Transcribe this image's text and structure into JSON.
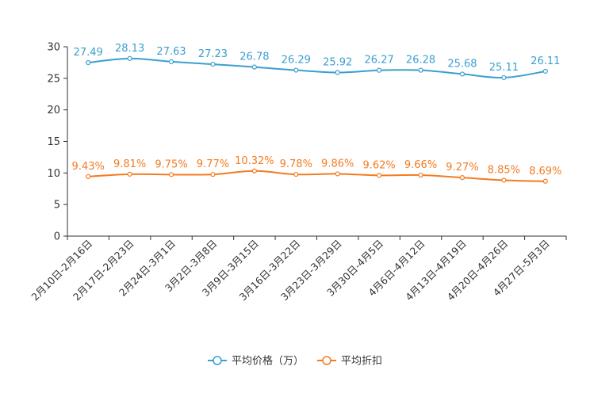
{
  "chart_data": {
    "type": "line",
    "title": "",
    "xlabel": "",
    "ylabel": "",
    "ylim": [
      0,
      30
    ],
    "yticks": [
      0,
      5,
      10,
      15,
      20,
      25,
      30
    ],
    "categories": [
      "2月10日-2月16日",
      "2月17日-2月23日",
      "2月24日-3月1日",
      "3月2日-3月8日",
      "3月9日-3月15日",
      "3月16日-3月22日",
      "3月23日-3月29日",
      "3月30日-4月5日",
      "4月6日-4月12日",
      "4月13日-4月19日",
      "4月20日-4月26日",
      "4月27日-5月3日"
    ],
    "series": [
      {
        "name": "平均价格（万）",
        "color": "#3a9fd0",
        "values": [
          27.49,
          28.13,
          27.63,
          27.23,
          26.78,
          26.29,
          25.92,
          26.27,
          26.28,
          25.68,
          25.11,
          26.11
        ],
        "labels": [
          "27.49",
          "28.13",
          "27.63",
          "27.23",
          "26.78",
          "26.29",
          "25.92",
          "26.27",
          "26.28",
          "25.68",
          "25.11",
          "26.11"
        ]
      },
      {
        "name": "平均折扣",
        "color": "#f47b20",
        "values": [
          9.43,
          9.81,
          9.75,
          9.77,
          10.32,
          9.78,
          9.86,
          9.62,
          9.66,
          9.27,
          8.85,
          8.69
        ],
        "labels": [
          "9.43%",
          "9.81%",
          "9.75%",
          "9.77%",
          "10.32%",
          "9.78%",
          "9.86%",
          "9.62%",
          "9.66%",
          "9.27%",
          "8.85%",
          "8.69%"
        ]
      }
    ],
    "legend_position": "bottom-center",
    "grid": false
  }
}
